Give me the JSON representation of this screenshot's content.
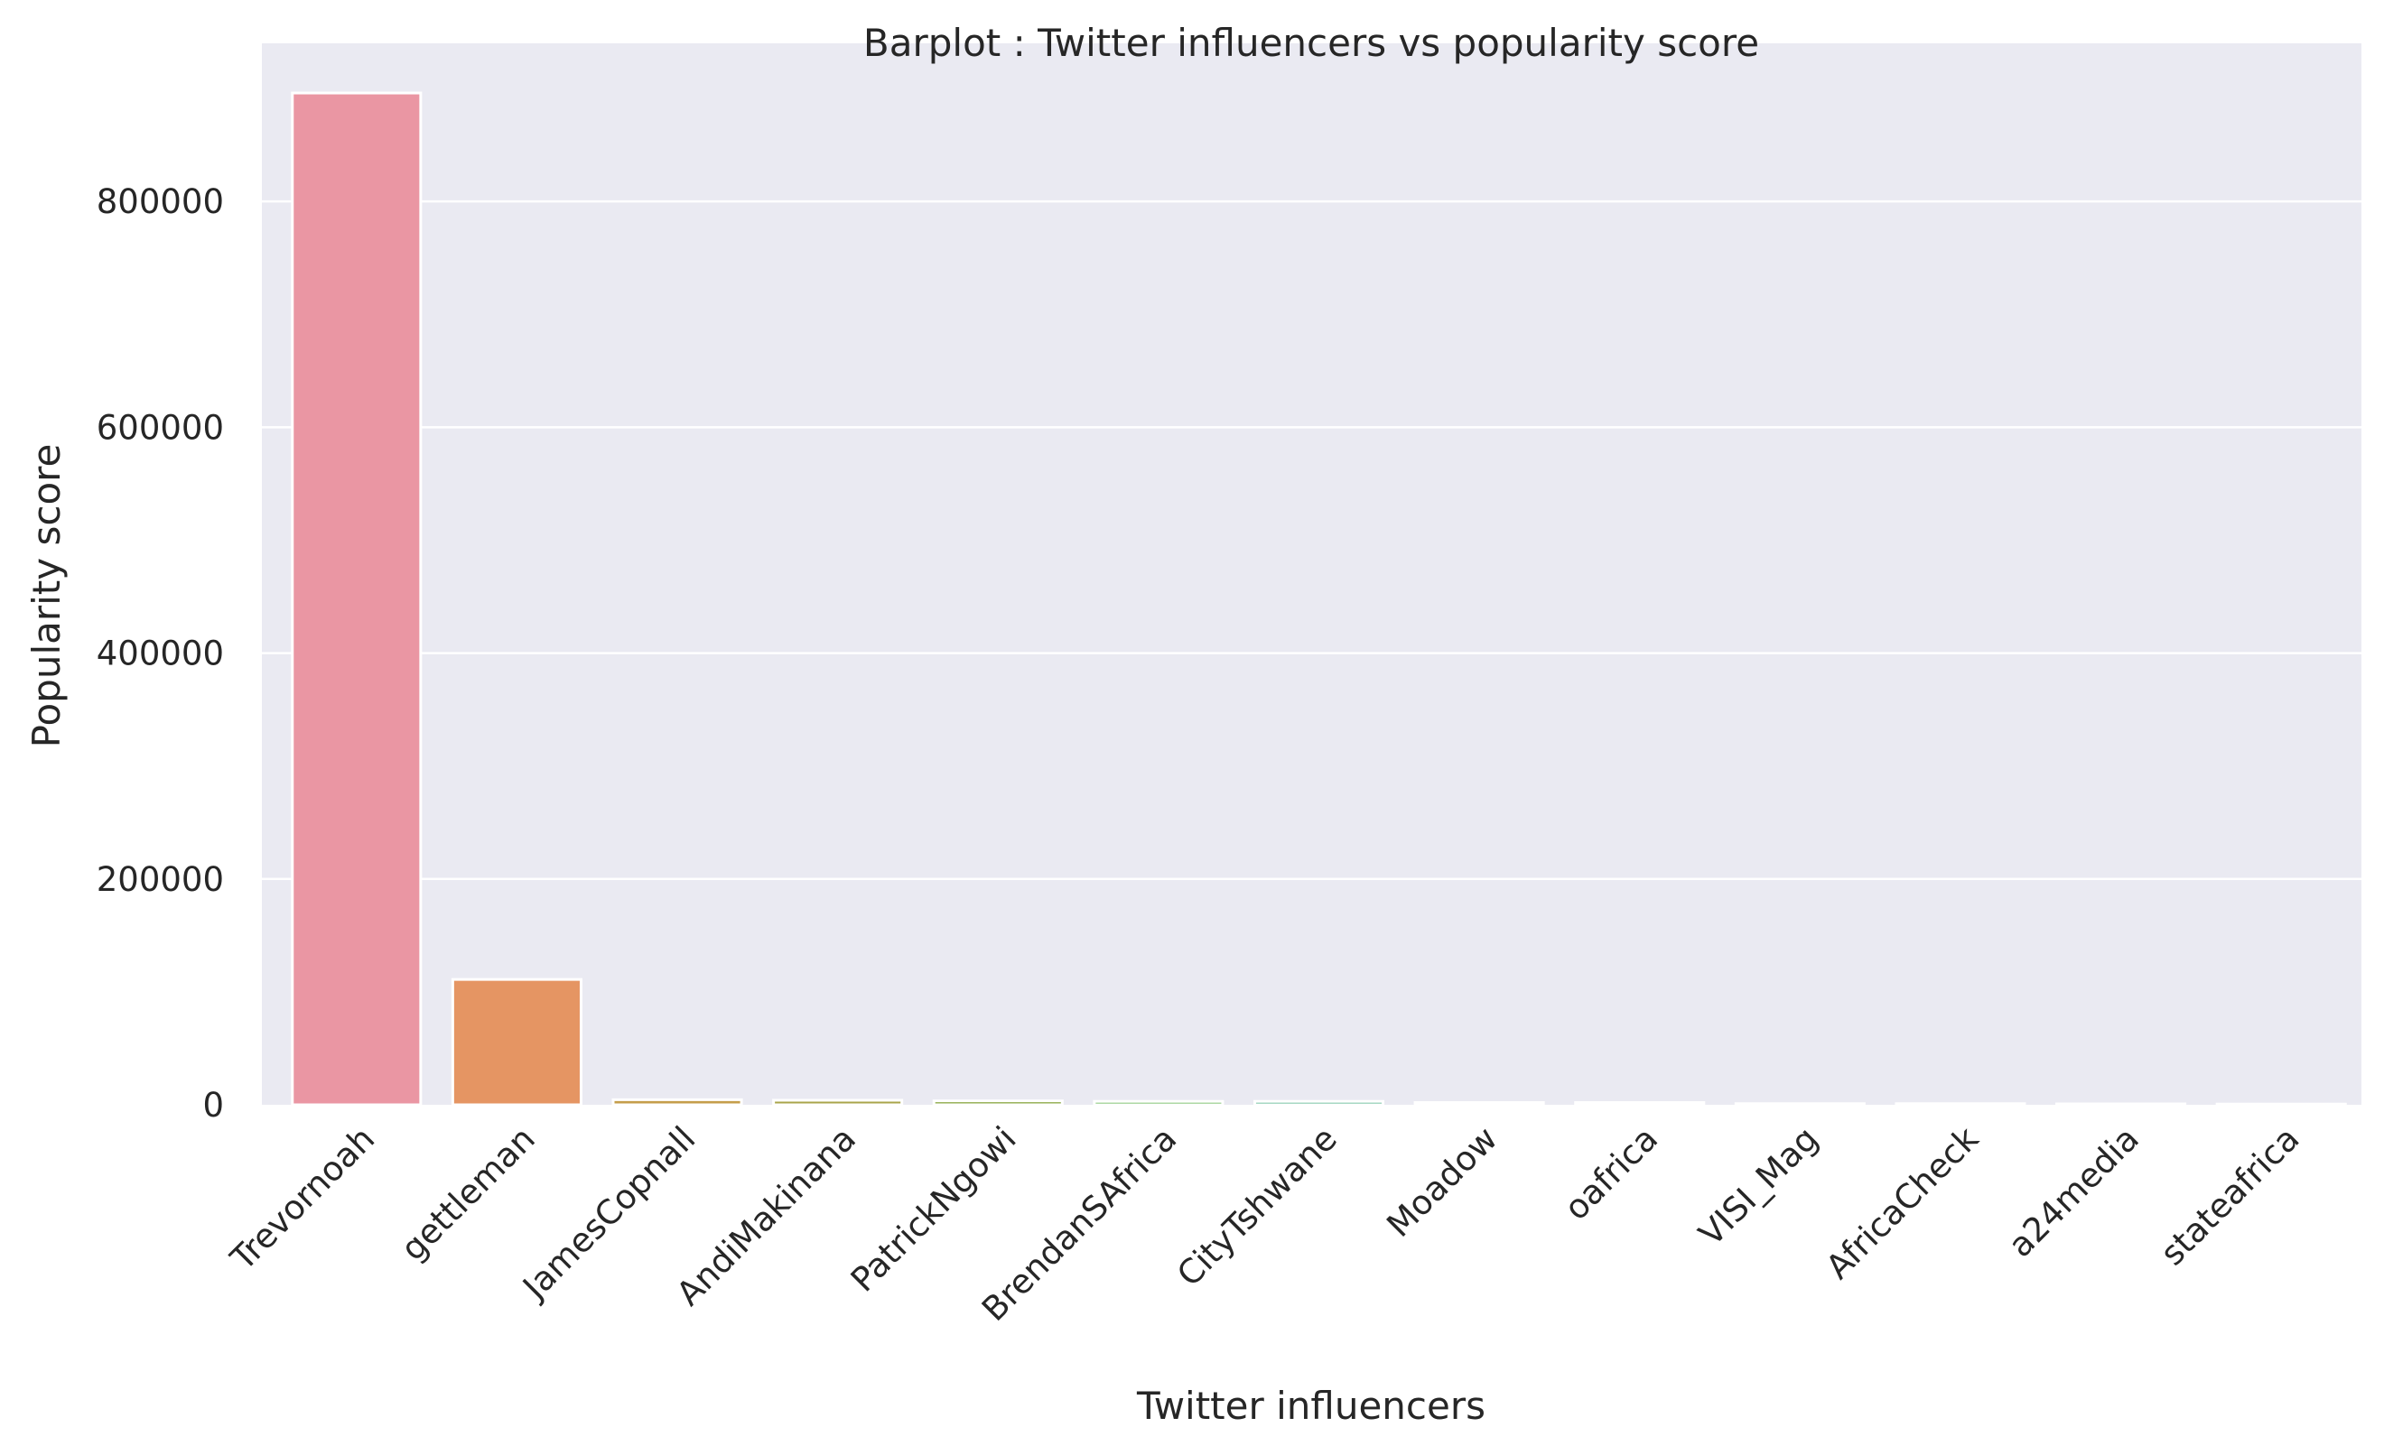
{
  "chart_data": {
    "type": "bar",
    "title": "Barplot : Twitter influencers vs popularity score",
    "xlabel": "Twitter influencers",
    "ylabel": "Popularity score",
    "categories": [
      "Trevornoah",
      "gettleman",
      "JamesCopnall",
      "AndiMakinana",
      "PatrickNgowi",
      "BrendanSAfrica",
      "CityTshwane",
      "Moadow",
      "oafrica",
      "VISI_Mag",
      "AfricaCheck",
      "a24media",
      "stateafrica"
    ],
    "values": [
      896000,
      111000,
      4500,
      4000,
      3500,
      3000,
      3000,
      2000,
      2000,
      1000,
      1000,
      800,
      600
    ],
    "colors": [
      "#ea96a3",
      "#e59563",
      "#c59e4b",
      "#a9a54a",
      "#8eab49",
      "#5bb24a",
      "#4fb087",
      "#52ae9f",
      "#53acb1",
      "#57a8c9",
      "#8d9fe9",
      "#c08fea",
      "#e586da"
    ],
    "yticks": [
      0,
      200000,
      400000,
      600000,
      800000
    ],
    "ylim": [
      0,
      940000
    ],
    "grid": true,
    "background": "#eaeaf2"
  }
}
